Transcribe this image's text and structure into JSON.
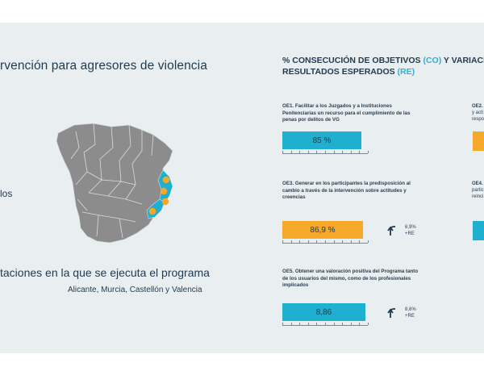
{
  "left": {
    "title": "rvención para agresores de violencia",
    "fragment": "los",
    "provinces_heading": "taciones en la que se ejecuta el programa",
    "provinces_list": "Alicante, Murcia, Castellón y Valencia"
  },
  "right": {
    "title_part1": "% CONSECUCIÓN DE OBJETIVOS ",
    "title_co": "(CO)",
    "title_part2": " Y VARIACIÓ",
    "title_line2": "RESULTADOS ESPERADOS ",
    "title_re": "(RE)"
  },
  "colors": {
    "blue": "#1fb0cf",
    "orange": "#f5a82a",
    "navy": "#1f3a52",
    "panel": "#e9eef0",
    "map_gray": "#8c8c8c"
  },
  "chart_data": {
    "type": "bar",
    "title": "% CONSECUCIÓN DE OBJETIVOS (CO) Y VARIACIÓ… RESULTADOS ESPERADOS (RE)",
    "objectives": [
      {
        "label": "OE1. Facilitar a los Juzgados y a Instituciones Penitenciarias un recurso para el cumplimiento de las penas por delitos de VG",
        "value": 85,
        "display": "85 %",
        "color": "blue"
      },
      {
        "label": "OE3. Generar en los participantes la predisposición al cambio a través de la intervención sobre actitudes y creencias",
        "value": 86.9,
        "display": "86,9 %",
        "color": "orange",
        "re": "6,9%",
        "re_suffix": "+RE"
      },
      {
        "label": "OE5. Obtener una valoración positiva del Programa tanto de los usuarios del mismo, como de los profesionales implicados",
        "value": 8.86,
        "display": "8,86",
        "color": "blue",
        "re": "8,6%",
        "re_suffix": "+RE"
      }
    ],
    "partial": [
      {
        "label": "OE2.",
        "lines": [
          "y acti",
          "respo"
        ],
        "color": "orange"
      },
      {
        "label": "OE4.",
        "lines": [
          "partic",
          "reinci"
        ],
        "color": "blue"
      }
    ]
  }
}
